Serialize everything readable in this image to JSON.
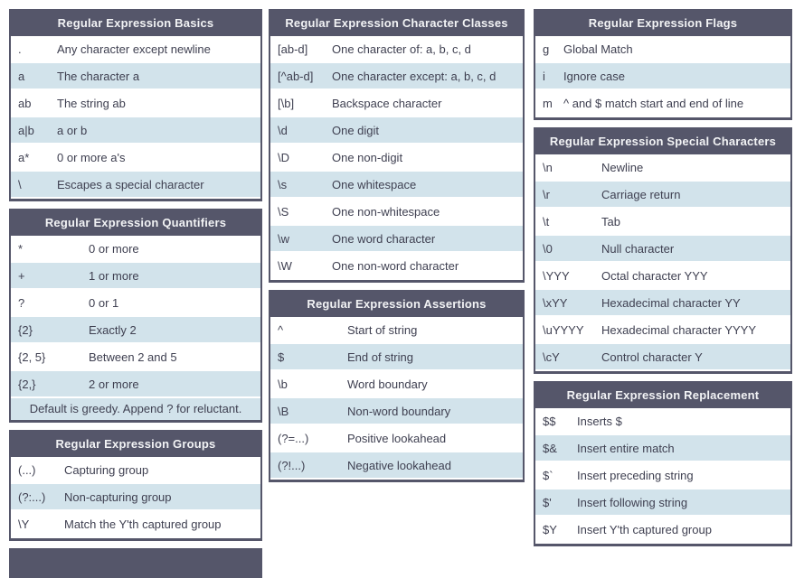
{
  "theme": {
    "header_bg": "#55566a",
    "header_text": "#f2f3f5",
    "row_bg": "#ffffff",
    "row_alt_bg": "#d2e3eb",
    "text": "#3f4051"
  },
  "columns": [
    {
      "tables": [
        {
          "title": "Regular Expression Basics",
          "rows": [
            {
              "code": ".",
              "desc": "Any character except newline"
            },
            {
              "code": "a",
              "desc": "The character a"
            },
            {
              "code": "ab",
              "desc": "The string ab"
            },
            {
              "code": "a|b",
              "desc": "a or b"
            },
            {
              "code": "a*",
              "desc": "0 or more a's"
            },
            {
              "code": "\\",
              "desc": "Escapes a special character"
            }
          ]
        },
        {
          "title": "Regular Expression Quantifiers",
          "rows": [
            {
              "code": "*",
              "desc": "0 or more"
            },
            {
              "code": "+",
              "desc": "1 or more"
            },
            {
              "code": "?",
              "desc": "0 or 1"
            },
            {
              "code": "{2}",
              "desc": "Exactly 2"
            },
            {
              "code": "{2, 5}",
              "desc": "Between 2 and 5"
            },
            {
              "code": "{2,}",
              "desc": "2 or more"
            }
          ],
          "footer": "Default is greedy. Append ? for reluctant."
        },
        {
          "title": "Regular Expression Groups",
          "rows": [
            {
              "code": "(...)",
              "desc": "Capturing group"
            },
            {
              "code": "(?:...)",
              "desc": "Non-capturing group"
            },
            {
              "code": "\\Y",
              "desc": "Match the Y'th captured group"
            }
          ]
        },
        {
          "title": "",
          "partial": true,
          "rows": []
        }
      ]
    },
    {
      "tables": [
        {
          "title": "Regular Expression Character Classes",
          "rows": [
            {
              "code": "[ab-d]",
              "desc": "One character of: a, b, c, d"
            },
            {
              "code": "[^ab-d]",
              "desc": "One character except: a, b, c, d"
            },
            {
              "code": "[\\b]",
              "desc": "Backspace character"
            },
            {
              "code": "\\d",
              "desc": "One digit"
            },
            {
              "code": "\\D",
              "desc": "One non-digit"
            },
            {
              "code": "\\s",
              "desc": "One whitespace"
            },
            {
              "code": "\\S",
              "desc": "One non-whitespace"
            },
            {
              "code": "\\w",
              "desc": "One word character"
            },
            {
              "code": "\\W",
              "desc": "One non-word character"
            }
          ]
        },
        {
          "title": "Regular Expression Assertions",
          "rows": [
            {
              "code": "^",
              "desc": "Start of string"
            },
            {
              "code": "$",
              "desc": "End of string"
            },
            {
              "code": "\\b",
              "desc": "Word boundary"
            },
            {
              "code": "\\B",
              "desc": "Non-word boundary"
            },
            {
              "code": "(?=...)",
              "desc": "Positive lookahead"
            },
            {
              "code": "(?!...)",
              "desc": "Negative lookahead"
            }
          ]
        }
      ]
    },
    {
      "tables": [
        {
          "title": "Regular Expression Flags",
          "rows": [
            {
              "code": "g",
              "desc": "Global Match"
            },
            {
              "code": "i",
              "desc": "Ignore case"
            },
            {
              "code": "m",
              "desc": "^ and $ match start and end of line"
            }
          ]
        },
        {
          "title": "Regular Expression Special Characters",
          "rows": [
            {
              "code": "\\n",
              "desc": "Newline"
            },
            {
              "code": "\\r",
              "desc": "Carriage return"
            },
            {
              "code": "\\t",
              "desc": "Tab"
            },
            {
              "code": "\\0",
              "desc": "Null character"
            },
            {
              "code": "\\YYY",
              "desc": "Octal character YYY"
            },
            {
              "code": "\\xYY",
              "desc": "Hexadecimal character YY"
            },
            {
              "code": "\\uYYYY",
              "desc": "Hexadecimal character YYYY"
            },
            {
              "code": "\\cY",
              "desc": "Control character Y"
            }
          ]
        },
        {
          "title": "Regular Expression Replacement",
          "rows": [
            {
              "code": "$$",
              "desc": "Inserts $"
            },
            {
              "code": "$&",
              "desc": "Insert entire match"
            },
            {
              "code": "$`",
              "desc": "Insert preceding string"
            },
            {
              "code": "$'",
              "desc": "Insert following string"
            },
            {
              "code": "$Y",
              "desc": "Insert Y'th captured group"
            }
          ]
        }
      ]
    }
  ]
}
